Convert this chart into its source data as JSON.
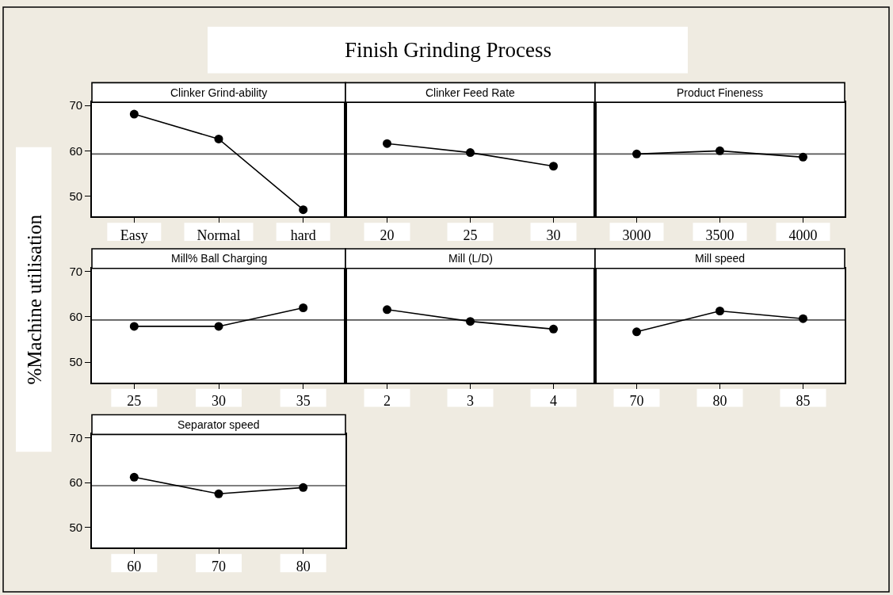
{
  "chart_data": [
    {
      "type": "line",
      "title": "Clinker Grind-ability",
      "annotations": [
        "Finish Grinding Process"
      ],
      "categories": [
        "Easy",
        "Normal",
        "hard"
      ],
      "values": [
        68.1,
        62.6,
        47.0
      ],
      "color": "#000000",
      "marker": "circle",
      "ylim": [
        45.5,
        70.7
      ],
      "yticks": [
        50,
        60,
        70
      ],
      "ref_lines": [
        {
          "axis": "y",
          "value": 59.3,
          "color": "#555555"
        }
      ]
    },
    {
      "type": "line",
      "title": "Clinker Feed Rate",
      "categories": [
        "20",
        "25",
        "30"
      ],
      "values": [
        61.6,
        59.6,
        56.6
      ],
      "color": "#000000",
      "marker": "circle",
      "ylim": [
        45.5,
        70.7
      ],
      "yticks": [
        50,
        60,
        70
      ],
      "tick_labels": "x",
      "ref_lines": [
        {
          "axis": "y",
          "value": 59.3,
          "color": "#555555"
        }
      ]
    },
    {
      "type": "line",
      "title": "Product Fineness",
      "categories": [
        "3000",
        "3500",
        "4000"
      ],
      "values": [
        59.3,
        60.0,
        58.6
      ],
      "color": "#000000",
      "marker": "circle",
      "ylim": [
        45.5,
        70.7
      ],
      "yticks": [
        50,
        60,
        70
      ],
      "tick_labels": "x",
      "ref_lines": [
        {
          "axis": "y",
          "value": 59.3,
          "color": "#555555"
        }
      ]
    },
    {
      "type": "line",
      "title": "Mill% Ball Charging",
      "ylabel": "%Machine utilisation",
      "categories": [
        "25",
        "30",
        "35"
      ],
      "values": [
        57.9,
        57.9,
        62.0
      ],
      "color": "#000000",
      "marker": "circle",
      "ylim": [
        45.5,
        70.7
      ],
      "yticks": [
        50,
        60,
        70
      ],
      "ref_lines": [
        {
          "axis": "y",
          "value": 59.3,
          "color": "#555555"
        }
      ]
    },
    {
      "type": "line",
      "title": "Mill (L/D)",
      "categories": [
        "2",
        "3",
        "4"
      ],
      "values": [
        61.6,
        59.0,
        57.3
      ],
      "color": "#000000",
      "marker": "circle",
      "ylim": [
        45.5,
        70.7
      ],
      "yticks": [
        50,
        60,
        70
      ],
      "tick_labels": "x",
      "ref_lines": [
        {
          "axis": "y",
          "value": 59.3,
          "color": "#555555"
        }
      ]
    },
    {
      "type": "line",
      "title": "Mill speed",
      "categories": [
        "70",
        "80",
        "85"
      ],
      "values": [
        56.7,
        61.3,
        59.6
      ],
      "color": "#000000",
      "marker": "circle",
      "ylim": [
        45.5,
        70.7
      ],
      "yticks": [
        50,
        60,
        70
      ],
      "tick_labels": "x",
      "ref_lines": [
        {
          "axis": "y",
          "value": 59.3,
          "color": "#555555"
        }
      ]
    },
    {
      "type": "line",
      "title": "Separator speed",
      "categories": [
        "60",
        "70",
        "80"
      ],
      "values": [
        61.2,
        57.5,
        58.9
      ],
      "color": "#000000",
      "marker": "circle",
      "ylim": [
        45.5,
        70.7
      ],
      "yticks": [
        50,
        60,
        70
      ],
      "ref_lines": [
        {
          "axis": "y",
          "value": 59.3,
          "color": "#555555"
        }
      ]
    }
  ]
}
